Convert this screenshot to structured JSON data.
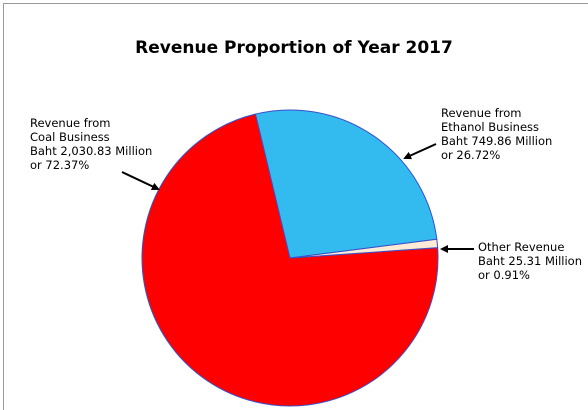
{
  "chart_data": {
    "type": "pie",
    "title": "Revenue Proportion of Year 2017",
    "categories": [
      "Revenue from\nCoal Business",
      "Revenue from\nEthanol Business",
      "Other Revenue"
    ],
    "amount_labels": [
      "Baht 2,030.83 Million",
      "Baht 749.86 Million",
      "Baht 25.31 Million"
    ],
    "values": [
      72.37,
      26.72,
      0.91
    ],
    "value_labels": [
      "or 72.37%",
      "or 26.72%",
      "or 0.91%"
    ],
    "colors": [
      "#ff0000",
      "#33bbf0",
      "#fdebd6"
    ]
  }
}
